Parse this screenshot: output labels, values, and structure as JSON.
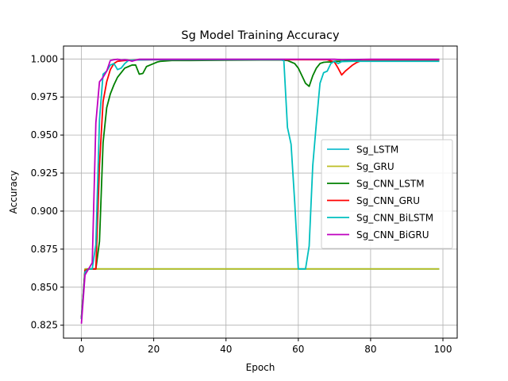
{
  "chart_data": {
    "type": "line",
    "title": "Sg Model Training Accuracy",
    "xlabel": "Epoch",
    "ylabel": "Accuracy",
    "xlim": [
      -4.95,
      103.95
    ],
    "ylim": [
      0.8165,
      1.0085
    ],
    "xticks": [
      0,
      20,
      40,
      60,
      80,
      100
    ],
    "xtick_labels": [
      "0",
      "20",
      "40",
      "60",
      "80",
      "100"
    ],
    "yticks": [
      0.825,
      0.85,
      0.875,
      0.9,
      0.925,
      0.95,
      0.975,
      1.0
    ],
    "ytick_labels": [
      "0.825",
      "0.850",
      "0.875",
      "0.900",
      "0.925",
      "0.950",
      "0.975",
      "1.000"
    ],
    "grid": true,
    "legend_position": "center-right",
    "series": [
      {
        "name": "Sg_LSTM",
        "color": "#17becf",
        "points": [
          [
            0,
            0.83
          ],
          [
            1,
            0.862
          ],
          [
            2,
            0.862
          ],
          [
            3,
            0.862
          ],
          [
            4,
            0.862
          ],
          [
            5,
            0.862
          ],
          [
            6,
            0.862
          ],
          [
            10,
            0.862
          ],
          [
            20,
            0.862
          ],
          [
            30,
            0.862
          ],
          [
            40,
            0.862
          ],
          [
            50,
            0.862
          ],
          [
            60,
            0.862
          ],
          [
            70,
            0.862
          ],
          [
            80,
            0.862
          ],
          [
            90,
            0.862
          ],
          [
            99,
            0.862
          ]
        ]
      },
      {
        "name": "Sg_GRU",
        "color": "#bcbd22",
        "points": [
          [
            0,
            0.83
          ],
          [
            1,
            0.862
          ],
          [
            2,
            0.862
          ],
          [
            3,
            0.862
          ],
          [
            4,
            0.862
          ],
          [
            5,
            0.862
          ],
          [
            6,
            0.862
          ],
          [
            10,
            0.862
          ],
          [
            20,
            0.862
          ],
          [
            30,
            0.862
          ],
          [
            40,
            0.862
          ],
          [
            50,
            0.862
          ],
          [
            60,
            0.862
          ],
          [
            70,
            0.862
          ],
          [
            80,
            0.862
          ],
          [
            90,
            0.862
          ],
          [
            99,
            0.862
          ]
        ]
      },
      {
        "name": "Sg_CNN_LSTM",
        "color": "#008000",
        "points": [
          [
            0,
            0.829
          ],
          [
            1,
            0.861
          ],
          [
            2,
            0.862
          ],
          [
            3,
            0.862
          ],
          [
            4,
            0.862
          ],
          [
            5,
            0.88
          ],
          [
            6,
            0.945
          ],
          [
            7,
            0.968
          ],
          [
            8,
            0.977
          ],
          [
            9,
            0.983
          ],
          [
            10,
            0.988
          ],
          [
            11,
            0.991
          ],
          [
            12,
            0.994
          ],
          [
            13,
            0.995
          ],
          [
            14,
            0.996
          ],
          [
            15,
            0.996
          ],
          [
            16,
            0.99
          ],
          [
            17,
            0.9905
          ],
          [
            18,
            0.995
          ],
          [
            19,
            0.996
          ],
          [
            20,
            0.997
          ],
          [
            21,
            0.998
          ],
          [
            22,
            0.9985
          ],
          [
            25,
            0.999
          ],
          [
            30,
            0.999
          ],
          [
            40,
            0.9992
          ],
          [
            50,
            0.9993
          ],
          [
            55,
            0.9993
          ],
          [
            57,
            0.999
          ],
          [
            58,
            0.998
          ],
          [
            59,
            0.997
          ],
          [
            60,
            0.994
          ],
          [
            61,
            0.989
          ],
          [
            62,
            0.984
          ],
          [
            63,
            0.982
          ],
          [
            64,
            0.989
          ],
          [
            65,
            0.994
          ],
          [
            66,
            0.997
          ],
          [
            67,
            0.9978
          ],
          [
            68,
            0.998
          ],
          [
            69,
            0.998
          ],
          [
            70,
            0.9985
          ],
          [
            72,
            0.9985
          ],
          [
            75,
            0.999
          ],
          [
            80,
            0.999
          ],
          [
            90,
            0.9992
          ],
          [
            99,
            0.9992
          ]
        ]
      },
      {
        "name": "Sg_CNN_GRU",
        "color": "#ff0000",
        "points": [
          [
            0,
            0.83
          ],
          [
            1,
            0.861
          ],
          [
            2,
            0.862
          ],
          [
            3,
            0.862
          ],
          [
            4,
            0.862
          ],
          [
            5,
            0.93
          ],
          [
            6,
            0.972
          ],
          [
            7,
            0.985
          ],
          [
            8,
            0.993
          ],
          [
            9,
            0.997
          ],
          [
            10,
            0.9985
          ],
          [
            12,
            0.999
          ],
          [
            15,
            0.9993
          ],
          [
            20,
            0.9995
          ],
          [
            30,
            0.9995
          ],
          [
            40,
            0.9995
          ],
          [
            50,
            0.9995
          ],
          [
            60,
            0.9995
          ],
          [
            65,
            0.9995
          ],
          [
            68,
            0.9995
          ],
          [
            70,
            0.998
          ],
          [
            71,
            0.994
          ],
          [
            72,
            0.9895
          ],
          [
            73,
            0.992
          ],
          [
            74,
            0.994
          ],
          [
            75,
            0.996
          ],
          [
            76,
            0.9975
          ],
          [
            77,
            0.9985
          ],
          [
            78,
            0.999
          ],
          [
            80,
            0.9993
          ],
          [
            90,
            0.9993
          ],
          [
            99,
            0.9993
          ]
        ]
      },
      {
        "name": "Sg_CNN_BiLSTM",
        "color": "#00bfbf",
        "points": [
          [
            0,
            0.829
          ],
          [
            1,
            0.86
          ],
          [
            2,
            0.862
          ],
          [
            3,
            0.862
          ],
          [
            4,
            0.878
          ],
          [
            5,
            0.96
          ],
          [
            6,
            0.99
          ],
          [
            7,
            0.992
          ],
          [
            8,
            0.996
          ],
          [
            9,
            0.997
          ],
          [
            10,
            0.993
          ],
          [
            11,
            0.994
          ],
          [
            12,
            0.997
          ],
          [
            13,
            0.999
          ],
          [
            15,
            0.9993
          ],
          [
            20,
            0.9995
          ],
          [
            30,
            0.9995
          ],
          [
            40,
            0.9995
          ],
          [
            50,
            0.9995
          ],
          [
            55,
            0.9995
          ],
          [
            56,
            0.999
          ],
          [
            57,
            0.955
          ],
          [
            58,
            0.944
          ],
          [
            59,
            0.906
          ],
          [
            60,
            0.862
          ],
          [
            61,
            0.862
          ],
          [
            62,
            0.862
          ],
          [
            63,
            0.877
          ],
          [
            64,
            0.93
          ],
          [
            65,
            0.958
          ],
          [
            66,
            0.984
          ],
          [
            67,
            0.991
          ],
          [
            68,
            0.992
          ],
          [
            69,
            0.997
          ],
          [
            70,
            0.9985
          ],
          [
            71,
            0.997
          ],
          [
            72,
            0.9983
          ],
          [
            75,
            0.9985
          ],
          [
            80,
            0.9985
          ],
          [
            90,
            0.9985
          ],
          [
            99,
            0.9985
          ]
        ]
      },
      {
        "name": "Sg_CNN_BiGRU",
        "color": "#bf00bf",
        "points": [
          [
            0,
            0.826
          ],
          [
            1,
            0.858
          ],
          [
            2,
            0.862
          ],
          [
            3,
            0.866
          ],
          [
            4,
            0.958
          ],
          [
            5,
            0.985
          ],
          [
            6,
            0.988
          ],
          [
            7,
            0.992
          ],
          [
            8,
            0.999
          ],
          [
            9,
            0.9995
          ],
          [
            10,
            0.9998
          ],
          [
            11,
            0.9993
          ],
          [
            12,
            0.9995
          ],
          [
            13,
            0.9992
          ],
          [
            14,
            0.9985
          ],
          [
            15,
            0.9992
          ],
          [
            16,
            0.9998
          ],
          [
            20,
            0.9998
          ],
          [
            30,
            0.9998
          ],
          [
            40,
            0.9998
          ],
          [
            50,
            0.9998
          ],
          [
            60,
            0.9998
          ],
          [
            70,
            0.9998
          ],
          [
            72,
            0.9995
          ],
          [
            80,
            0.9998
          ],
          [
            90,
            0.9998
          ],
          [
            99,
            0.9998
          ]
        ]
      }
    ]
  }
}
